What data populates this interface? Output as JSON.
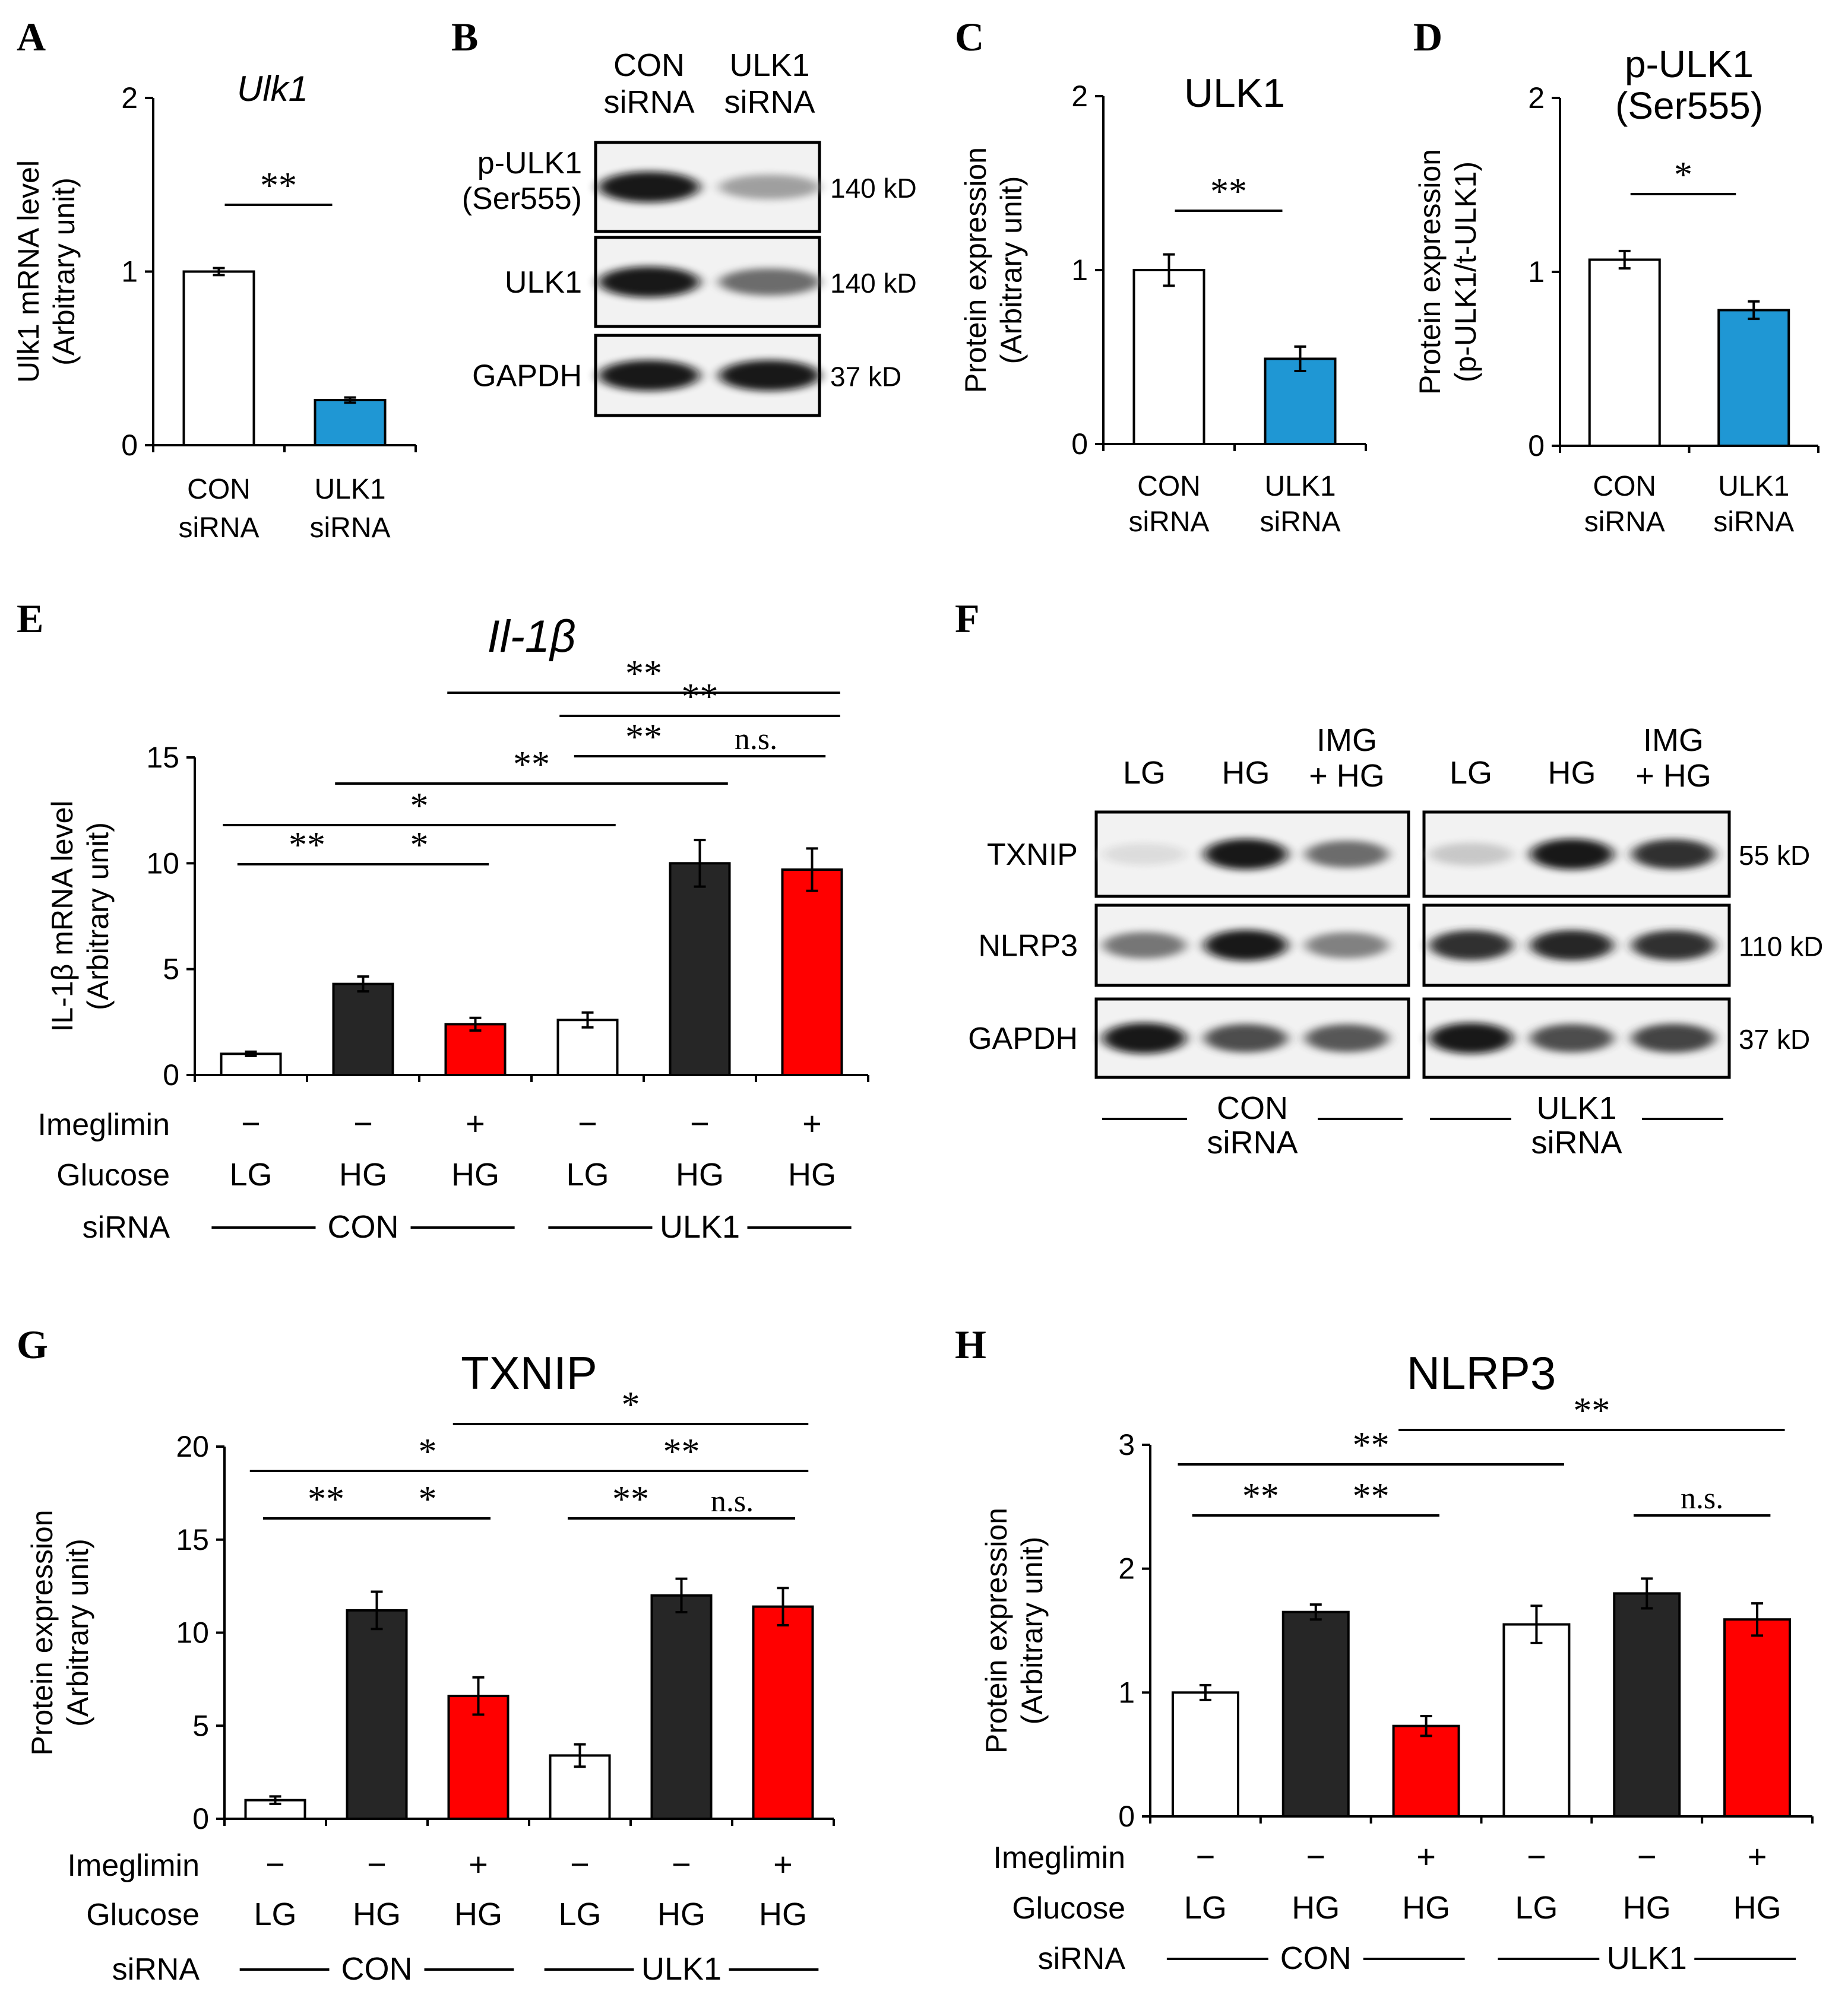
{
  "colors": {
    "ctrl": "#ffffff",
    "blue": "#1f97d4",
    "black": "#262626",
    "red": "#ff0000",
    "axis": "#000000"
  },
  "common": {
    "con_sirna": [
      "CON",
      "siRNA"
    ],
    "ulk1_sirna": [
      "ULK1",
      "siRNA"
    ],
    "con": "CON",
    "ulk1": "ULK1",
    "imeglimin": "Imeglimin",
    "glucose": "Glucose",
    "sirna": "siRNA",
    "minus": "−",
    "plus": "+",
    "lg": "LG",
    "hg": "HG"
  },
  "chart_data": [
    {
      "id": "A",
      "letter": "A",
      "type": "bar",
      "title": "Ulk1",
      "ylabel": [
        "Ulk1  mRNA level",
        "(Arbitrary unit)"
      ],
      "ylim": [
        0,
        2
      ],
      "yticks": [
        0,
        1,
        2
      ],
      "values": [
        1.0,
        0.26
      ],
      "errors": [
        0.02,
        0.015
      ],
      "colors": [
        "ctrl",
        "blue"
      ],
      "sig": [
        {
          "from": 0,
          "to": 1,
          "label": "**"
        }
      ]
    },
    {
      "id": "C",
      "letter": "C",
      "type": "bar",
      "title": "ULK1",
      "ylabel": [
        "Protein expression",
        "(Arbitrary unit)"
      ],
      "ylim": [
        0,
        2
      ],
      "yticks": [
        0,
        1,
        2
      ],
      "values": [
        1.0,
        0.49
      ],
      "errors": [
        0.09,
        0.07
      ],
      "colors": [
        "ctrl",
        "blue"
      ],
      "sig": [
        {
          "from": 0,
          "to": 1,
          "label": "**"
        }
      ]
    },
    {
      "id": "D",
      "letter": "D",
      "type": "bar",
      "title": [
        "p-ULK1",
        "(Ser555)"
      ],
      "ylabel": [
        "Protein expression",
        "(p-ULK1/t-ULK1)"
      ],
      "ylim": [
        0,
        2
      ],
      "yticks": [
        0,
        1,
        2
      ],
      "values": [
        1.07,
        0.78
      ],
      "errors": [
        0.05,
        0.05
      ],
      "colors": [
        "ctrl",
        "blue"
      ],
      "sig": [
        {
          "from": 0,
          "to": 1,
          "label": "*"
        }
      ]
    },
    {
      "id": "E",
      "letter": "E",
      "type": "bar",
      "title": "Il-1β",
      "ylabel": [
        "IL-1β mRNA level",
        "(Arbitrary unit)"
      ],
      "ylim": [
        0,
        15
      ],
      "yticks": [
        0,
        5,
        10,
        15
      ],
      "values": [
        1.0,
        4.3,
        2.4,
        2.6,
        10.0,
        9.7
      ],
      "errors": [
        0.1,
        0.35,
        0.3,
        0.35,
        1.1,
        1.0
      ],
      "colors": [
        "ctrl",
        "black",
        "red",
        "ctrl",
        "black",
        "red"
      ],
      "sig": [
        {
          "from": 0,
          "to": 1,
          "label": "**"
        },
        {
          "from": 1,
          "to": 2,
          "label": "*"
        },
        {
          "from": 0,
          "to": 3,
          "label": "*"
        },
        {
          "from": 1,
          "to": 4,
          "label": "**"
        },
        {
          "from": 3,
          "to": 4,
          "label": "**"
        },
        {
          "from": 4,
          "to": 5,
          "label": "n.s."
        },
        {
          "from": 3,
          "to": 5,
          "label": "**"
        },
        {
          "from": 2,
          "to": 5,
          "label": "**"
        }
      ],
      "imeglimin": [
        "−",
        "−",
        "+",
        "−",
        "−",
        "+"
      ],
      "glucose": [
        "LG",
        "HG",
        "HG",
        "LG",
        "HG",
        "HG"
      ]
    },
    {
      "id": "G",
      "letter": "G",
      "type": "bar",
      "title": "TXNIP",
      "ylabel": [
        "Protein expression",
        "(Arbitrary unit)"
      ],
      "ylim": [
        0,
        20
      ],
      "yticks": [
        0,
        5,
        10,
        15,
        20
      ],
      "values": [
        1.0,
        11.2,
        6.6,
        3.4,
        12.0,
        11.4
      ],
      "errors": [
        0.2,
        1.0,
        1.0,
        0.6,
        0.9,
        1.0
      ],
      "colors": [
        "ctrl",
        "black",
        "red",
        "ctrl",
        "black",
        "red"
      ],
      "sig": [
        {
          "from": 0,
          "to": 1,
          "label": "**"
        },
        {
          "from": 1,
          "to": 2,
          "label": "*"
        },
        {
          "from": 3,
          "to": 4,
          "label": "**"
        },
        {
          "from": 4,
          "to": 5,
          "label": "n.s."
        },
        {
          "from": 0,
          "to": 3,
          "label": "*"
        },
        {
          "from": 3,
          "to": 5,
          "label": "**"
        },
        {
          "from": 2,
          "to": 5,
          "label": "*"
        }
      ],
      "imeglimin": [
        "−",
        "−",
        "+",
        "−",
        "−",
        "+"
      ],
      "glucose": [
        "LG",
        "HG",
        "HG",
        "LG",
        "HG",
        "HG"
      ]
    },
    {
      "id": "H",
      "letter": "H",
      "type": "bar",
      "title": "NLRP3",
      "ylabel": [
        "Protein expression",
        "(Arbitrary unit)"
      ],
      "ylim": [
        0,
        3
      ],
      "yticks": [
        0,
        1,
        2,
        3
      ],
      "values": [
        1.0,
        1.65,
        0.73,
        1.55,
        1.8,
        1.59
      ],
      "errors": [
        0.06,
        0.06,
        0.08,
        0.15,
        0.12,
        0.13
      ],
      "colors": [
        "ctrl",
        "black",
        "red",
        "ctrl",
        "black",
        "red"
      ],
      "sig": [
        {
          "from": 0,
          "to": 1,
          "label": "**"
        },
        {
          "from": 1,
          "to": 2,
          "label": "**"
        },
        {
          "from": 4,
          "to": 5,
          "label": "n.s."
        },
        {
          "from": 0,
          "to": 3,
          "label": "**"
        },
        {
          "from": 2,
          "to": 5,
          "label": "**"
        }
      ],
      "imeglimin": [
        "−",
        "−",
        "+",
        "−",
        "−",
        "+"
      ],
      "glucose": [
        "LG",
        "HG",
        "HG",
        "LG",
        "HG",
        "HG"
      ]
    }
  ],
  "blots": {
    "B": {
      "letter": "B",
      "lanes": [
        [
          "CON",
          "siRNA"
        ],
        [
          "ULK1",
          "siRNA"
        ]
      ],
      "rows": [
        {
          "label": [
            "p-ULK1",
            "(Ser555)"
          ],
          "size": "140 kD",
          "intensity": [
            1.0,
            0.35
          ]
        },
        {
          "label": [
            "ULK1"
          ],
          "size": "140 kD",
          "intensity": [
            1.0,
            0.6
          ]
        },
        {
          "label": [
            "GAPDH"
          ],
          "size": "37 kD",
          "intensity": [
            1.0,
            1.0
          ]
        }
      ]
    },
    "F": {
      "letter": "F",
      "lanes": [
        [
          "LG"
        ],
        [
          "HG"
        ],
        [
          "IMG",
          "+ HG"
        ],
        [
          "LG"
        ],
        [
          "HG"
        ],
        [
          "IMG",
          "+ HG"
        ]
      ],
      "rows": [
        {
          "label": [
            "TXNIP"
          ],
          "size": "55 kD",
          "intensity": [
            0.05,
            1.0,
            0.6,
            0.15,
            1.0,
            0.9
          ]
        },
        {
          "label": [
            "NLRP3"
          ],
          "size": "110 kD",
          "intensity": [
            0.55,
            1.0,
            0.5,
            0.9,
            0.95,
            0.9
          ]
        },
        {
          "label": [
            "GAPDH"
          ],
          "size": "37 kD",
          "intensity": [
            1.0,
            0.75,
            0.7,
            1.0,
            0.75,
            0.8
          ]
        }
      ],
      "groups": [
        [
          "CON",
          "siRNA"
        ],
        [
          "ULK1",
          "siRNA"
        ]
      ]
    }
  }
}
